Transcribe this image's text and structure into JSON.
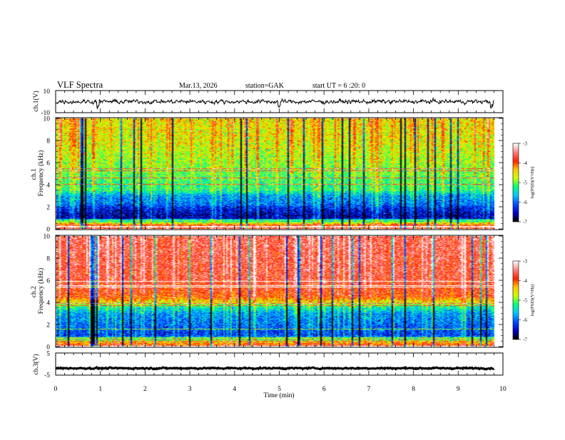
{
  "header": {
    "title": "VLF Spectra",
    "date": "Mar.13, 2026",
    "station": "station=GAK",
    "start": "start UT = 6 :20: 0"
  },
  "colorbar": {
    "label": "log(PSD)(V²/Hz)",
    "min": -7,
    "max": -3,
    "ticks": [
      "-3",
      "-4",
      "-5",
      "-6",
      "-7"
    ],
    "stops": [
      "#000000",
      "#0000c8",
      "#0050ff",
      "#00c8ff",
      "#00ff80",
      "#c8ff00",
      "#ffc800",
      "#ff2000",
      "#ff8080",
      "#ffffff"
    ]
  },
  "chart_data": [
    {
      "type": "line",
      "name": "ch1-waveform",
      "ylabel": "ch.1(V)",
      "ylim": [
        -10,
        10
      ],
      "yticks": [
        "10",
        "-10"
      ],
      "xlim": [
        0,
        10
      ],
      "baseline": 0,
      "amplitude": 1.5,
      "dips_at_min": [
        0.95,
        5.0,
        9.75
      ]
    },
    {
      "type": "heatmap",
      "name": "ch1-spectrogram",
      "ylabel": "ch.1\nFrequency (kHz)",
      "ylim": [
        0,
        10
      ],
      "yticks": [
        "0",
        "2",
        "4",
        "6",
        "8",
        "10"
      ],
      "xlim": [
        0,
        10
      ],
      "data_end_min": 9.8,
      "level_profile_khz": [
        [
          0,
          -3.8
        ],
        [
          0.3,
          -3.9
        ],
        [
          0.6,
          -5.0
        ],
        [
          0.8,
          -6.5
        ],
        [
          1.2,
          -6.6
        ],
        [
          1.9,
          -6.3
        ],
        [
          2.2,
          -6.0
        ],
        [
          3.0,
          -5.8
        ],
        [
          3.5,
          -5.2
        ],
        [
          4.0,
          -5.2
        ],
        [
          5.5,
          -4.9
        ],
        [
          8.0,
          -4.6
        ],
        [
          10.0,
          -4.5
        ]
      ]
    },
    {
      "type": "heatmap",
      "name": "ch2-spectrogram",
      "ylabel": "ch.2\nFrequency (kHz)",
      "ylim": [
        0,
        10
      ],
      "yticks": [
        "0",
        "2",
        "4",
        "6",
        "8",
        "10"
      ],
      "xlim": [
        0,
        10
      ],
      "data_end_min": 9.8,
      "level_profile_khz": [
        [
          0,
          -3.8
        ],
        [
          0.3,
          -4.2
        ],
        [
          0.6,
          -5.4
        ],
        [
          1.0,
          -6.2
        ],
        [
          2.0,
          -6.0
        ],
        [
          3.0,
          -5.8
        ],
        [
          3.6,
          -5.3
        ],
        [
          4.0,
          -4.6
        ],
        [
          4.5,
          -4.0
        ],
        [
          6.0,
          -3.7
        ],
        [
          10.0,
          -3.6
        ]
      ]
    },
    {
      "type": "line",
      "name": "ch3-waveform",
      "ylabel": "ch.3(V)",
      "ylim": [
        -5,
        5
      ],
      "yticks": [
        "5",
        "-5"
      ],
      "xlim": [
        0,
        10
      ],
      "baseline": -1.9,
      "amplitude": 0.25
    }
  ],
  "xaxis": {
    "label": "Time (min)",
    "ticks": [
      "0",
      "1",
      "2",
      "3",
      "4",
      "5",
      "6",
      "7",
      "8",
      "9",
      "10"
    ]
  }
}
